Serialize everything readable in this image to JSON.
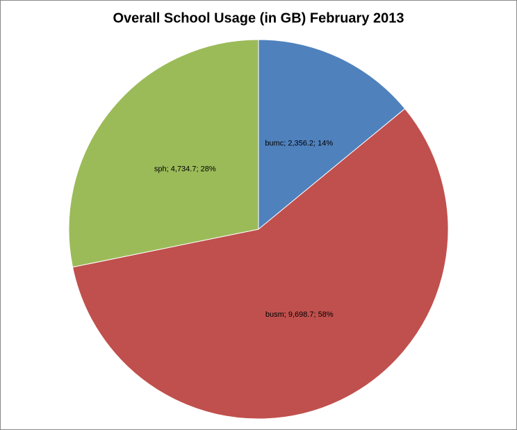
{
  "chart_data": {
    "type": "pie",
    "title": "Overall School Usage (in GB) February 2013",
    "categories": [
      "bumc",
      "busm",
      "sph"
    ],
    "values": [
      2356.2,
      9698.7,
      4734.7
    ],
    "value_labels": [
      "bumc; 2,356.2; 14%",
      "busm; 9,698.7; 58%",
      "sph; 4,734.7; 28%"
    ],
    "colors": [
      "#4f81bd",
      "#c0504d",
      "#9bbb59"
    ]
  }
}
